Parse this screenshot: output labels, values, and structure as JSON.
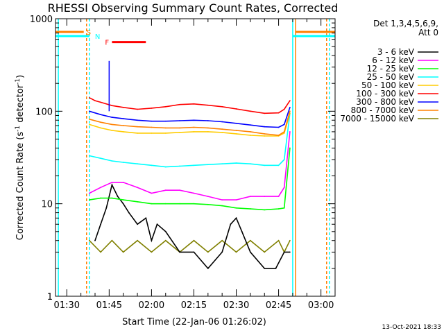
{
  "chart_data": {
    "type": "line",
    "title": "RHESSI Observing Summary Count Rates, Corrected",
    "xlabel": "Start Time (22-Jan-06 01:26:02)",
    "ylabel": "Corrected Count Rate (s⁻¹ detector⁻¹)",
    "ylabel_main": "Corrected Count Rate (s",
    "ylabel_sup1": "-1",
    "ylabel_mid": " detector",
    "ylabel_sup2": "-1",
    "ylabel_end": ")",
    "yscale": "log",
    "ylim": [
      1,
      1000
    ],
    "xlim": [
      "01:26",
      "03:05"
    ],
    "xticks": [
      "01:30",
      "01:45",
      "02:00",
      "02:15",
      "02:30",
      "02:45",
      "03:00"
    ],
    "yticks": [
      "1",
      "10",
      "100",
      "1000"
    ],
    "legend_header": [
      "Det 1,3,4,5,6,9,",
      "Att 0"
    ],
    "legend_position": "right",
    "series": [
      {
        "name": "3 - 6 keV",
        "color": "#000000",
        "x": [
          "01:40",
          "01:42",
          "01:44",
          "01:46",
          "01:48",
          "01:50",
          "01:52",
          "01:55",
          "01:58",
          "02:00",
          "02:02",
          "02:05",
          "02:10",
          "02:15",
          "02:20",
          "02:25",
          "02:28",
          "02:30",
          "02:32",
          "02:35",
          "02:40",
          "02:44",
          "02:47",
          "02:49"
        ],
        "y": [
          4,
          6,
          9,
          16,
          12,
          10,
          8,
          6,
          7,
          4,
          6,
          5,
          3,
          3,
          2,
          3,
          6,
          7,
          5,
          3,
          2,
          2,
          3,
          3
        ]
      },
      {
        "name": "6 - 12 keV",
        "color": "#ff00ff",
        "x": [
          "01:38",
          "01:42",
          "01:46",
          "01:50",
          "01:55",
          "02:00",
          "02:05",
          "02:10",
          "02:15",
          "02:20",
          "02:25",
          "02:30",
          "02:35",
          "02:40",
          "02:45",
          "02:47",
          "02:49"
        ],
        "y": [
          13,
          15,
          17,
          17,
          15,
          13,
          14,
          14,
          13,
          12,
          11,
          11,
          12,
          12,
          12,
          15,
          60
        ]
      },
      {
        "name": "12 - 25 keV",
        "color": "#00ff00",
        "x": [
          "01:38",
          "01:42",
          "01:46",
          "01:50",
          "01:55",
          "02:00",
          "02:05",
          "02:10",
          "02:15",
          "02:20",
          "02:25",
          "02:30",
          "02:35",
          "02:40",
          "02:45",
          "02:47",
          "02:49"
        ],
        "y": [
          11,
          11.5,
          11.5,
          11,
          10.5,
          10,
          10,
          10,
          10,
          9.8,
          9.5,
          9,
          8.8,
          8.6,
          8.8,
          9,
          40
        ]
      },
      {
        "name": "25 - 50 keV",
        "color": "#00ffff",
        "x": [
          "01:38",
          "01:42",
          "01:46",
          "01:50",
          "01:55",
          "02:00",
          "02:05",
          "02:10",
          "02:15",
          "02:20",
          "02:25",
          "02:30",
          "02:35",
          "02:40",
          "02:45",
          "02:47",
          "02:49"
        ],
        "y": [
          33,
          31,
          29,
          28,
          27,
          26,
          25,
          25.5,
          26,
          26.5,
          27,
          27.5,
          27,
          26,
          26,
          30,
          95
        ]
      },
      {
        "name": "50 - 100 keV",
        "color": "#ffcc00",
        "x": [
          "01:38",
          "01:42",
          "01:46",
          "01:50",
          "01:55",
          "02:00",
          "02:05",
          "02:10",
          "02:15",
          "02:20",
          "02:25",
          "02:30",
          "02:35",
          "02:40",
          "02:45",
          "02:47",
          "02:49"
        ],
        "y": [
          72,
          66,
          62,
          60,
          58,
          58,
          58,
          59,
          60,
          60,
          59,
          57,
          55,
          54,
          54,
          58,
          95
        ]
      },
      {
        "name": "100 - 300 keV",
        "color": "#ff0000",
        "x": [
          "01:38",
          "01:40",
          "01:42",
          "01:46",
          "01:50",
          "01:55",
          "02:00",
          "02:05",
          "02:10",
          "02:15",
          "02:20",
          "02:25",
          "02:30",
          "02:35",
          "02:40",
          "02:45",
          "02:47",
          "02:49"
        ],
        "y": [
          140,
          130,
          125,
          115,
          110,
          105,
          108,
          112,
          118,
          120,
          116,
          112,
          106,
          100,
          95,
          96,
          105,
          130
        ]
      },
      {
        "name": "300 - 800 keV",
        "color": "#0000ff",
        "x": [
          "01:38",
          "01:42",
          "01:46",
          "01:50",
          "01:55",
          "02:00",
          "02:05",
          "02:10",
          "02:15",
          "02:20",
          "02:25",
          "02:30",
          "02:35",
          "02:40",
          "02:45",
          "02:47",
          "02:49"
        ],
        "y": [
          100,
          92,
          86,
          83,
          80,
          78,
          78,
          79,
          80,
          79,
          77,
          74,
          71,
          68,
          67,
          72,
          110
        ]
      },
      {
        "name": "800 - 7000 keV",
        "color": "#ff8000",
        "x": [
          "01:38",
          "01:42",
          "01:46",
          "01:50",
          "01:55",
          "02:00",
          "02:05",
          "02:10",
          "02:15",
          "02:20",
          "02:25",
          "02:30",
          "02:35",
          "02:40",
          "02:45",
          "02:47",
          "02:49"
        ],
        "y": [
          82,
          76,
          72,
          70,
          68,
          67,
          66,
          66,
          67,
          66,
          64,
          62,
          60,
          57,
          55,
          60,
          100
        ]
      },
      {
        "name": "7000 - 15000 keV",
        "color": "#808000",
        "x": [
          "01:38",
          "01:42",
          "01:46",
          "01:50",
          "01:55",
          "02:00",
          "02:05",
          "02:10",
          "02:15",
          "02:20",
          "02:25",
          "02:30",
          "02:35",
          "02:40",
          "02:45",
          "02:47",
          "02:49"
        ],
        "y": [
          4,
          3,
          4,
          3,
          4,
          3,
          4,
          3,
          4,
          3,
          4,
          3,
          4,
          3,
          4,
          3,
          4
        ]
      }
    ],
    "vertical_lines": [
      {
        "x": "01:27",
        "color": "#00ffff",
        "style": "solid"
      },
      {
        "x": "01:37",
        "color": "#ff8000",
        "style": "dashed"
      },
      {
        "x": "01:38",
        "color": "#00ffff",
        "style": "dashed"
      },
      {
        "x": "02:50",
        "color": "#00ffff",
        "style": "solid"
      },
      {
        "x": "02:51",
        "color": "#ff8000",
        "style": "solid"
      },
      {
        "x": "03:02",
        "color": "#ff8000",
        "style": "dashed"
      },
      {
        "x": "03:03",
        "color": "#00ffff",
        "style": "dashed"
      }
    ],
    "flag_bars": [
      {
        "label": "S",
        "color": "#ff8000",
        "x0": "01:26",
        "x1": "01:36",
        "x2": "02:51",
        "x3": "03:05",
        "y": 720
      },
      {
        "label": "N",
        "color": "#00ffff",
        "x0": "01:26",
        "x1": "01:38",
        "x2": "02:50",
        "x3": "03:05",
        "y": 650
      },
      {
        "label": "F",
        "color": "#ff0000",
        "x0": "01:46",
        "x1": "01:58",
        "y": 560
      }
    ],
    "spike": {
      "x": "01:45",
      "y": 350,
      "color": "#0000ff"
    },
    "grid": false
  },
  "footer_date": "13-Oct-2021 18:33"
}
